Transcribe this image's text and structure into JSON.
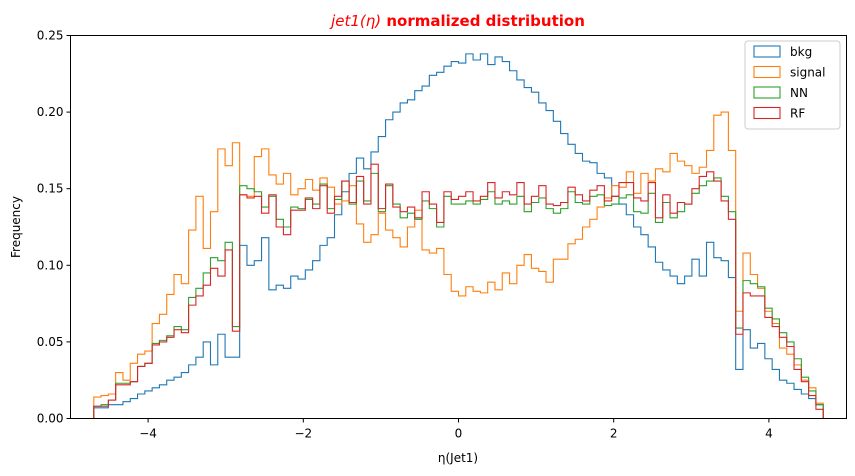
{
  "chart_data": {
    "type": "step-histogram",
    "title_math": "jet1(η)",
    "title_rest": " normalized distribution",
    "title_color": "#ff0000",
    "xlabel": "η(Jet1)",
    "ylabel": "Frequency",
    "xlim": [
      -5.0,
      5.0
    ],
    "ylim": [
      0.0,
      0.25
    ],
    "xticks": [
      -4,
      -2,
      0,
      2,
      4
    ],
    "xtick_labels": [
      "−4",
      "−2",
      "0",
      "2",
      "4"
    ],
    "yticks": [
      0.0,
      0.05,
      0.1,
      0.15,
      0.2,
      0.25
    ],
    "ytick_labels": [
      "0.00",
      "0.05",
      "0.10",
      "0.15",
      "0.20",
      "0.25"
    ],
    "grid": false,
    "legend_position": "top-right",
    "bins": {
      "start": -4.7,
      "end": 4.7,
      "count": 100
    },
    "series": [
      {
        "name": "bkg",
        "color": "#1f77b4",
        "values": [
          0.007,
          0.007,
          0.009,
          0.009,
          0.011,
          0.013,
          0.016,
          0.018,
          0.02,
          0.022,
          0.025,
          0.027,
          0.03,
          0.035,
          0.04,
          0.05,
          0.035,
          0.055,
          0.04,
          0.04,
          0.113,
          0.1,
          0.103,
          0.118,
          0.084,
          0.087,
          0.085,
          0.093,
          0.091,
          0.097,
          0.103,
          0.113,
          0.118,
          0.133,
          0.148,
          0.16,
          0.17,
          0.163,
          0.174,
          0.184,
          0.195,
          0.2,
          0.206,
          0.208,
          0.214,
          0.217,
          0.224,
          0.226,
          0.23,
          0.233,
          0.232,
          0.238,
          0.234,
          0.238,
          0.231,
          0.236,
          0.233,
          0.227,
          0.221,
          0.216,
          0.213,
          0.206,
          0.201,
          0.194,
          0.186,
          0.179,
          0.173,
          0.168,
          0.167,
          0.16,
          0.157,
          0.145,
          0.14,
          0.133,
          0.125,
          0.12,
          0.112,
          0.102,
          0.097,
          0.093,
          0.088,
          0.093,
          0.104,
          0.093,
          0.115,
          0.105,
          0.103,
          0.092,
          0.032,
          0.058,
          0.046,
          0.049,
          0.039,
          0.032,
          0.025,
          0.023,
          0.019,
          0.016,
          0.013,
          0.009
        ]
      },
      {
        "name": "signal",
        "color": "#ff7f0e",
        "values": [
          0.014,
          0.015,
          0.016,
          0.03,
          0.025,
          0.036,
          0.042,
          0.044,
          0.062,
          0.068,
          0.081,
          0.094,
          0.088,
          0.123,
          0.145,
          0.111,
          0.135,
          0.176,
          0.165,
          0.18,
          0.146,
          0.145,
          0.171,
          0.176,
          0.159,
          0.153,
          0.16,
          0.146,
          0.15,
          0.156,
          0.149,
          0.157,
          0.151,
          0.14,
          0.142,
          0.152,
          0.127,
          0.115,
          0.12,
          0.134,
          0.123,
          0.118,
          0.112,
          0.125,
          0.136,
          0.11,
          0.108,
          0.111,
          0.094,
          0.083,
          0.08,
          0.086,
          0.083,
          0.082,
          0.089,
          0.084,
          0.095,
          0.088,
          0.1,
          0.107,
          0.098,
          0.096,
          0.089,
          0.104,
          0.104,
          0.114,
          0.117,
          0.125,
          0.13,
          0.138,
          0.144,
          0.152,
          0.151,
          0.161,
          0.147,
          0.16,
          0.155,
          0.163,
          0.161,
          0.173,
          0.168,
          0.165,
          0.16,
          0.164,
          0.175,
          0.198,
          0.2,
          0.175,
          0.07,
          0.108,
          0.094,
          0.085,
          0.07,
          0.062,
          0.046,
          0.042,
          0.035,
          0.025,
          0.02,
          0.01
        ]
      },
      {
        "name": "NN",
        "color": "#2ca02c",
        "values": [
          0.008,
          0.009,
          0.012,
          0.023,
          0.023,
          0.024,
          0.034,
          0.036,
          0.049,
          0.051,
          0.054,
          0.06,
          0.058,
          0.079,
          0.085,
          0.095,
          0.105,
          0.103,
          0.115,
          0.06,
          0.152,
          0.15,
          0.148,
          0.138,
          0.145,
          0.13,
          0.125,
          0.138,
          0.137,
          0.143,
          0.14,
          0.153,
          0.137,
          0.143,
          0.155,
          0.14,
          0.155,
          0.142,
          0.16,
          0.135,
          0.152,
          0.14,
          0.131,
          0.134,
          0.13,
          0.142,
          0.137,
          0.125,
          0.145,
          0.14,
          0.14,
          0.142,
          0.14,
          0.143,
          0.148,
          0.14,
          0.142,
          0.14,
          0.145,
          0.135,
          0.141,
          0.144,
          0.137,
          0.134,
          0.137,
          0.148,
          0.141,
          0.14,
          0.145,
          0.146,
          0.139,
          0.14,
          0.144,
          0.146,
          0.135,
          0.134,
          0.147,
          0.128,
          0.141,
          0.131,
          0.135,
          0.14,
          0.147,
          0.152,
          0.155,
          0.157,
          0.145,
          0.135,
          0.059,
          0.09,
          0.088,
          0.086,
          0.072,
          0.065,
          0.056,
          0.05,
          0.039,
          0.027,
          0.018,
          0.009
        ]
      },
      {
        "name": "RF",
        "color": "#d62728",
        "values": [
          0.008,
          0.008,
          0.012,
          0.022,
          0.022,
          0.024,
          0.034,
          0.036,
          0.048,
          0.05,
          0.053,
          0.058,
          0.056,
          0.074,
          0.08,
          0.087,
          0.098,
          0.093,
          0.11,
          0.057,
          0.146,
          0.144,
          0.145,
          0.134,
          0.146,
          0.125,
          0.12,
          0.136,
          0.136,
          0.144,
          0.137,
          0.152,
          0.134,
          0.145,
          0.155,
          0.141,
          0.158,
          0.14,
          0.166,
          0.137,
          0.153,
          0.138,
          0.135,
          0.138,
          0.131,
          0.148,
          0.14,
          0.128,
          0.148,
          0.143,
          0.145,
          0.148,
          0.142,
          0.145,
          0.154,
          0.144,
          0.148,
          0.146,
          0.154,
          0.14,
          0.145,
          0.152,
          0.14,
          0.139,
          0.141,
          0.151,
          0.146,
          0.142,
          0.149,
          0.152,
          0.142,
          0.145,
          0.154,
          0.154,
          0.144,
          0.142,
          0.154,
          0.131,
          0.146,
          0.134,
          0.141,
          0.14,
          0.15,
          0.158,
          0.161,
          0.155,
          0.142,
          0.13,
          0.055,
          0.082,
          0.08,
          0.08,
          0.066,
          0.06,
          0.053,
          0.047,
          0.032,
          0.024,
          0.015,
          0.006
        ]
      }
    ]
  }
}
